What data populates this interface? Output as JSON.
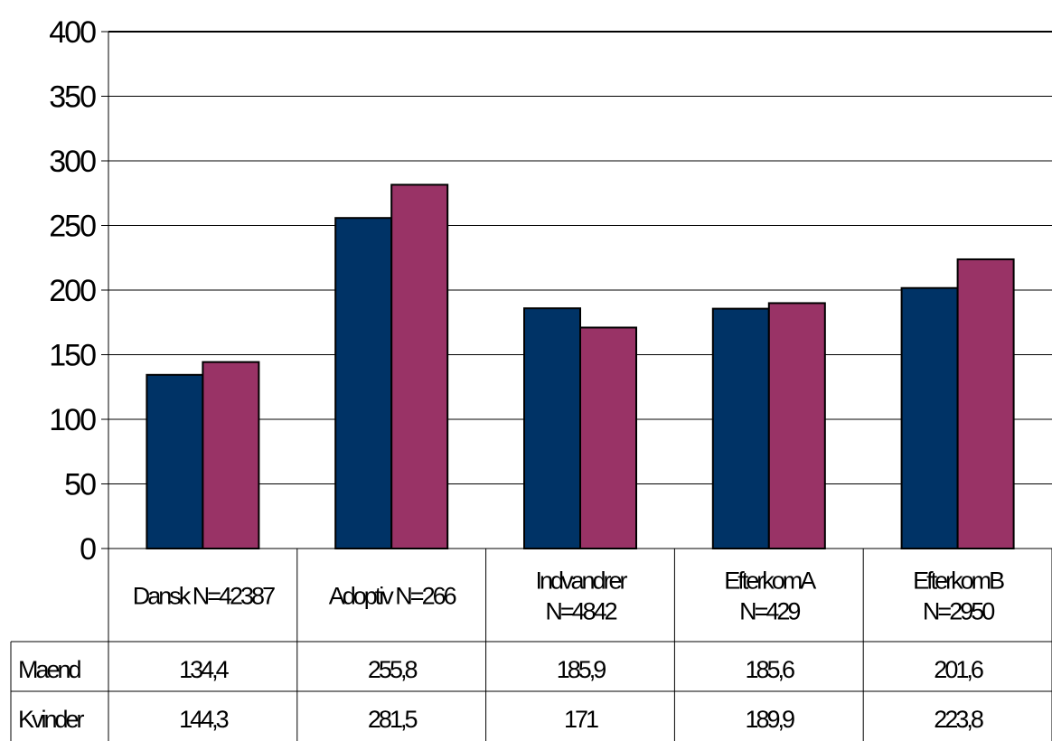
{
  "chart_data": {
    "type": "bar",
    "categories": [
      [
        "Dansk N=42387"
      ],
      [
        "Adoptiv N=266"
      ],
      [
        "Indvandrer",
        "N=4842"
      ],
      [
        "EfterkomA",
        "N=429"
      ],
      [
        "EfterkomB",
        "N=2950"
      ]
    ],
    "series": [
      {
        "name": "Maend",
        "color": "#003366",
        "values": [
          134.4,
          255.8,
          185.9,
          185.6,
          201.6
        ],
        "labels": [
          "134,4",
          "255,8",
          "185,9",
          "185,6",
          "201,6"
        ]
      },
      {
        "name": "Kvinder",
        "color": "#993366",
        "values": [
          144.3,
          281.5,
          171,
          189.9,
          223.8
        ],
        "labels": [
          "144,3",
          "281,5",
          "171",
          "189,9",
          "223,8"
        ]
      }
    ],
    "ylim": [
      0,
      400
    ],
    "yticks": [
      0,
      50,
      100,
      150,
      200,
      250,
      300,
      350,
      400
    ],
    "grid": true,
    "legend": "data table"
  }
}
